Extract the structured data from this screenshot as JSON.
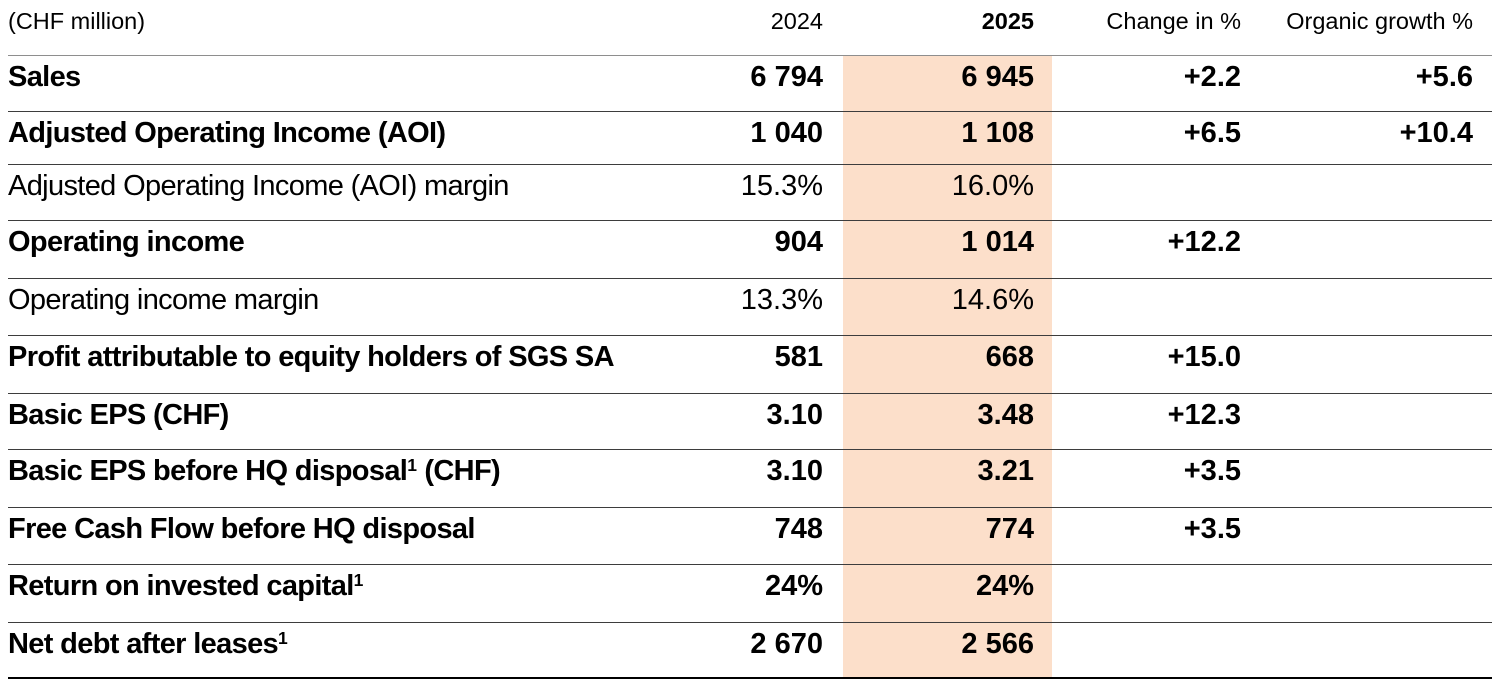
{
  "colors": {
    "background": "#ffffff",
    "text": "#000000",
    "highlight_column": "#fcdfca",
    "header_rule": "#8e8e8e",
    "row_rule": "#3d3d3d",
    "bottom_rule": "#000000"
  },
  "table": {
    "header": {
      "unit_label": "(CHF million)",
      "col_2024": "2024",
      "col_2025": "2025",
      "col_change": "Change in %",
      "col_organic": "Organic growth %"
    },
    "rows": [
      {
        "label": "Sales",
        "sup": "",
        "suffix": "",
        "bold": true,
        "y2024": "6 794",
        "y2025": "6 945",
        "change": "+2.2",
        "organic": "+5.6"
      },
      {
        "label": "Adjusted Operating Income (AOI)",
        "sup": "",
        "suffix": "",
        "bold": true,
        "y2024": "1 040",
        "y2025": "1 108",
        "change": "+6.5",
        "organic": "+10.4"
      },
      {
        "label": "Adjusted Operating Income (AOI) margin",
        "sup": "",
        "suffix": "",
        "bold": false,
        "y2024": "15.3%",
        "y2025": "16.0%",
        "change": "",
        "organic": ""
      },
      {
        "label": "Operating income",
        "sup": "",
        "suffix": "",
        "bold": true,
        "y2024": "904",
        "y2025": "1 014",
        "change": "+12.2",
        "organic": ""
      },
      {
        "label": "Operating income margin",
        "sup": "",
        "suffix": "",
        "bold": false,
        "y2024": "13.3%",
        "y2025": "14.6%",
        "change": "",
        "organic": ""
      },
      {
        "label": "Profit attributable to equity holders of SGS SA",
        "sup": "",
        "suffix": "",
        "bold": true,
        "y2024": "581",
        "y2025": "668",
        "change": "+15.0",
        "organic": ""
      },
      {
        "label": "Basic EPS (CHF)",
        "sup": "",
        "suffix": "",
        "bold": true,
        "y2024": "3.10",
        "y2025": "3.48",
        "change": "+12.3",
        "organic": ""
      },
      {
        "label": "Basic EPS before HQ disposal",
        "sup": "1",
        "suffix": " (CHF)",
        "bold": true,
        "y2024": "3.10",
        "y2025": "3.21",
        "change": "+3.5",
        "organic": ""
      },
      {
        "label": "Free Cash Flow before HQ disposal",
        "sup": "",
        "suffix": "",
        "bold": true,
        "y2024": "748",
        "y2025": "774",
        "change": "+3.5",
        "organic": ""
      },
      {
        "label": "Return on invested capital",
        "sup": "1",
        "suffix": "",
        "bold": true,
        "y2024": "24%",
        "y2025": "24%",
        "change": "",
        "organic": ""
      },
      {
        "label": "Net debt after leases",
        "sup": "1",
        "suffix": "",
        "bold": true,
        "y2024": "2 670",
        "y2025": "2 566",
        "change": "",
        "organic": ""
      }
    ]
  }
}
